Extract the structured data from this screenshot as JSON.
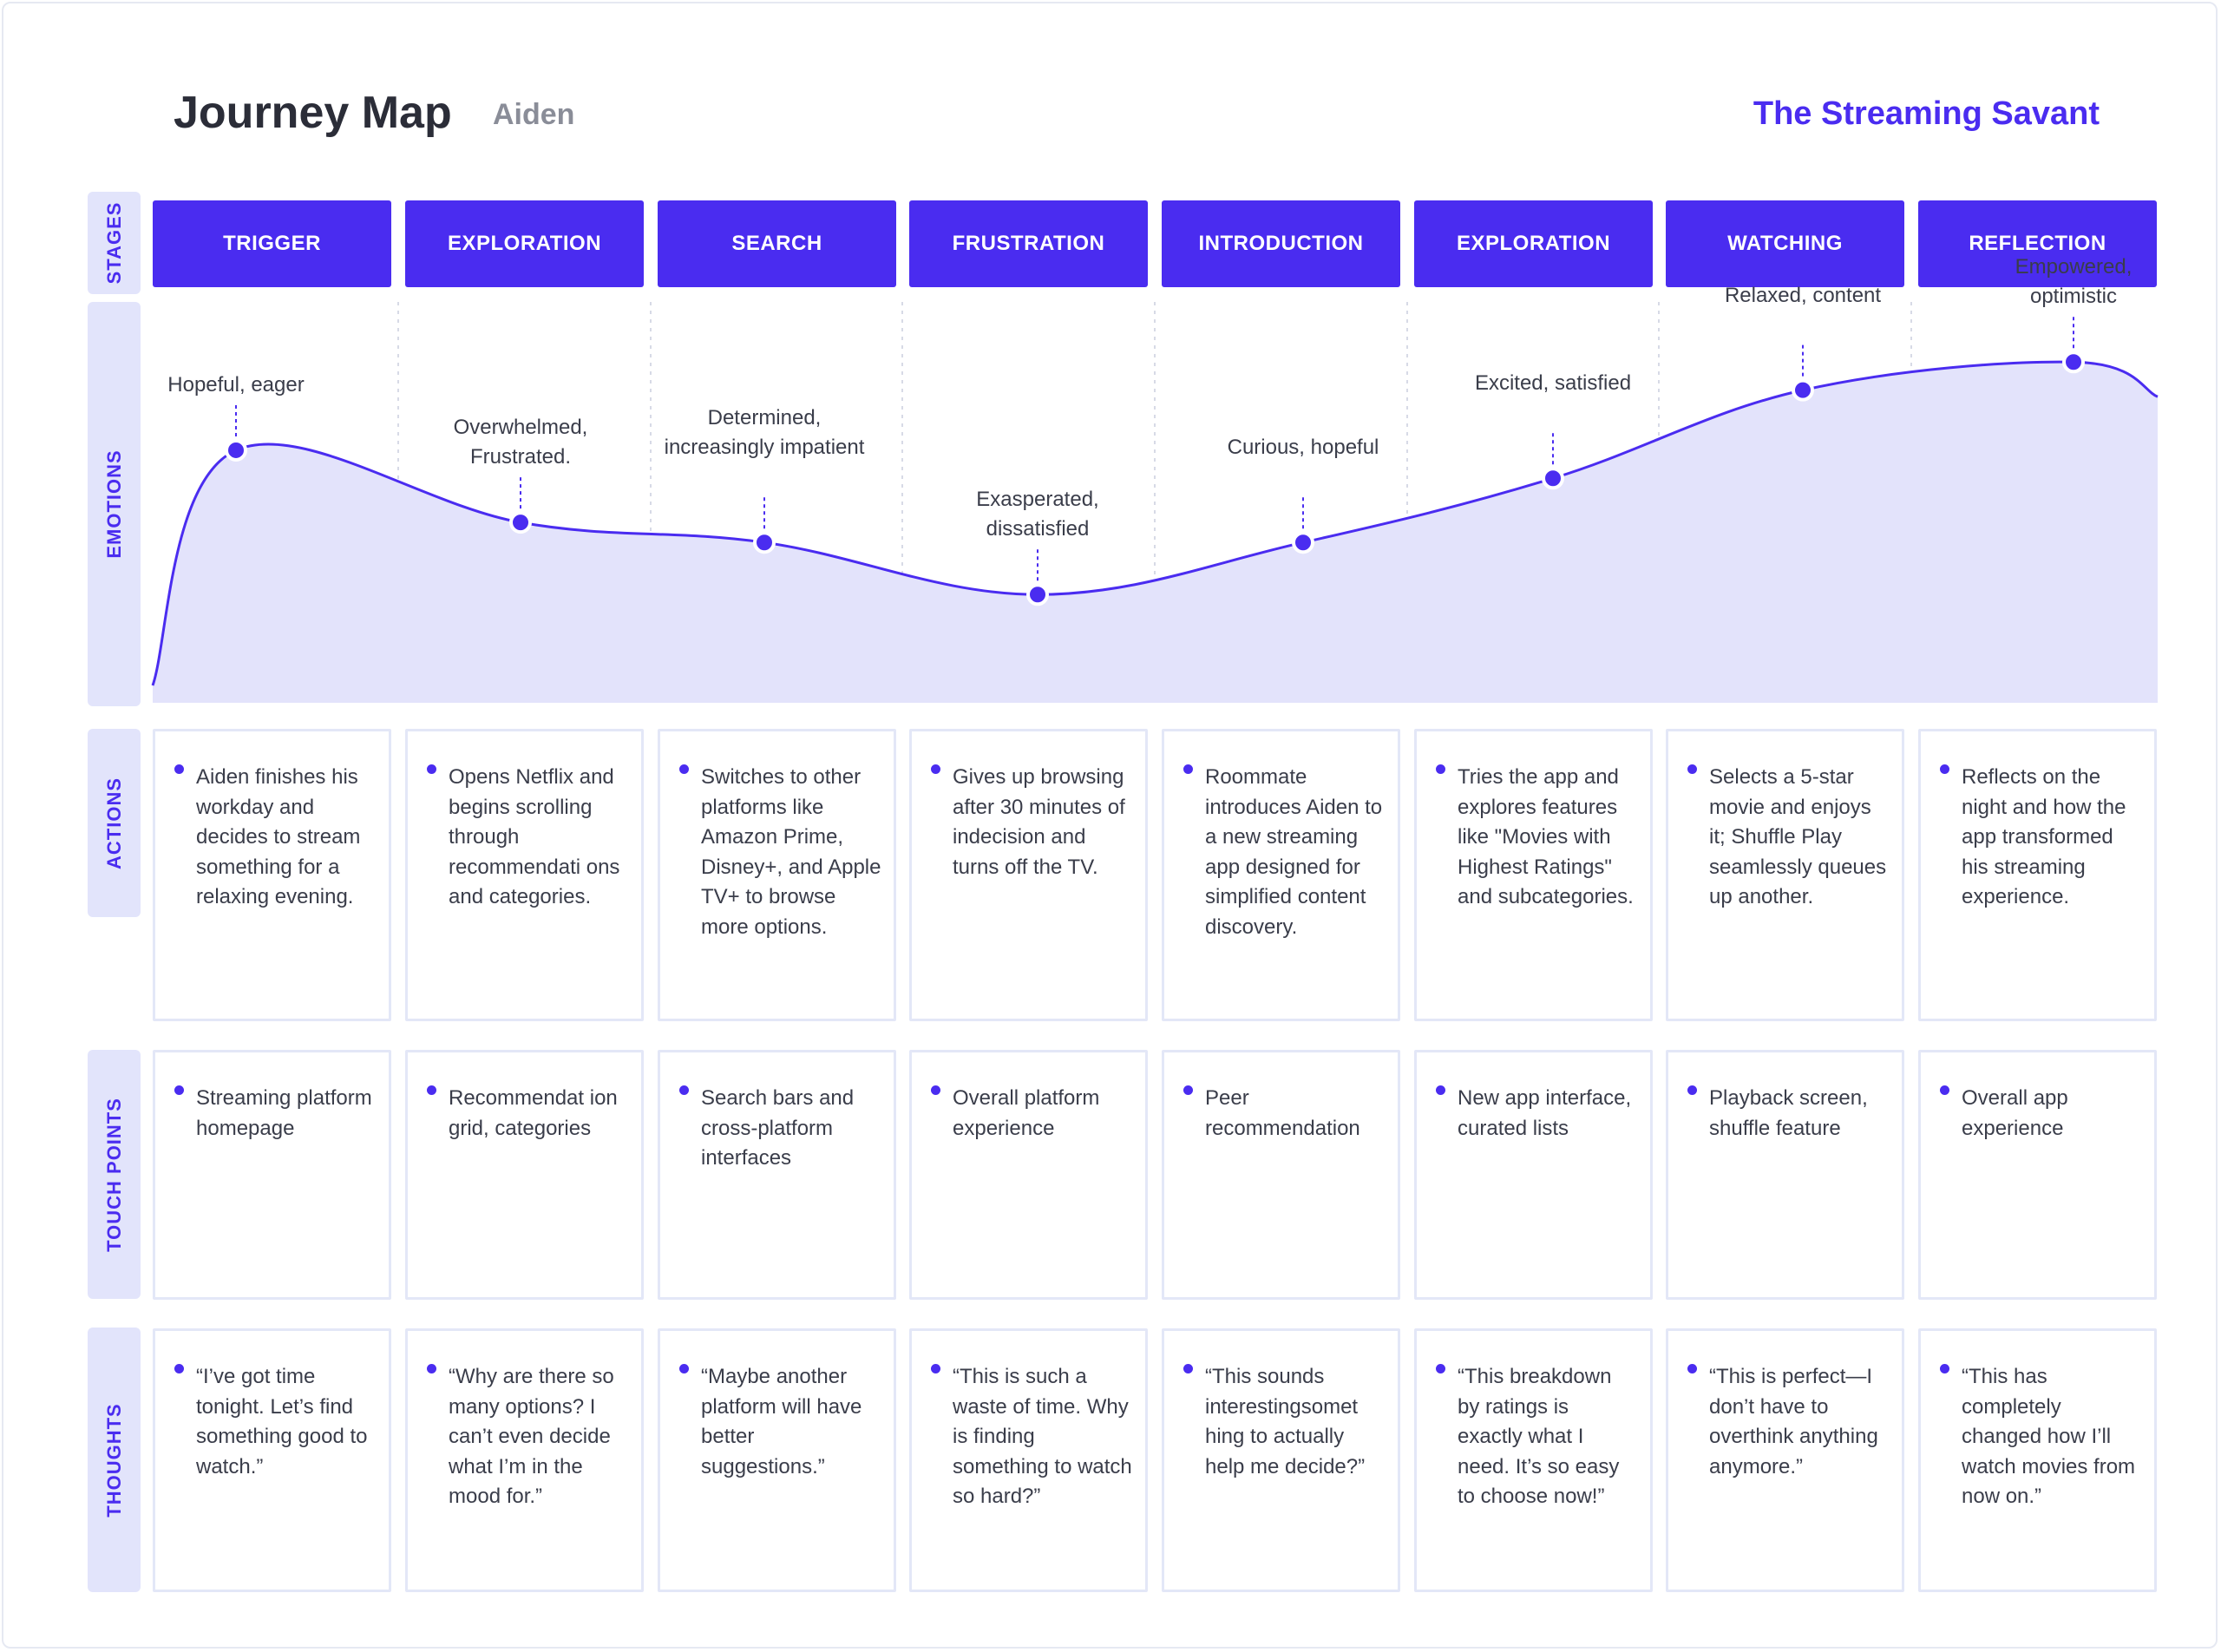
{
  "header": {
    "title": "Journey Map",
    "persona": "Aiden",
    "brand": "The Streaming Savant"
  },
  "colors": {
    "accent": "#4a2cf0",
    "label_bg": "#e2e4fb",
    "curve_fill": "#e3e3fb",
    "card_border": "#e3e7f7"
  },
  "row_labels": {
    "stages": "STAGES",
    "emotions": "EMOTIONS",
    "actions": "ACTIONS",
    "touchpoints": "TOUCH POINTS",
    "thoughts": "THOUGHTS"
  },
  "stages": [
    "TRIGGER",
    "EXPLORATION",
    "SEARCH",
    "FRUSTRATION",
    "INTRODUCTION",
    "EXPLORATION",
    "WATCHING",
    "REFLECTION"
  ],
  "emotions": [
    {
      "label": "Hopeful, eager",
      "level": 0.63
    },
    {
      "label": "Overwhelmed, Frustrated.",
      "level": 0.45
    },
    {
      "label": "Determined, increasingly impatient",
      "level": 0.4
    },
    {
      "label": "Exasperated, dissatisfied",
      "level": 0.27
    },
    {
      "label": "Curious, hopeful",
      "level": 0.4
    },
    {
      "label": "Excited, satisfied",
      "level": 0.56
    },
    {
      "label": "Relaxed, content",
      "level": 0.78
    },
    {
      "label": "Empowered, optimistic",
      "level": 0.85
    }
  ],
  "actions": [
    "Aiden finishes his workday and decides to stream something for a relaxing evening.",
    "Opens Netflix and begins scrolling through recommendati ons and categories.",
    "Switches to other platforms like Amazon Prime, Disney+, and Apple TV+ to browse more options.",
    "Gives up browsing after 30 minutes of indecision and turns off the TV.",
    "Roommate introduces Aiden to a new streaming app designed for simplified content discovery.",
    "Tries the app and explores features like \"Movies with Highest Ratings\" and subcategories.",
    "Selects a 5-star movie and enjoys it; Shuffle Play seamlessly queues up another.",
    "Reflects on the night and how the app transformed his streaming experience."
  ],
  "touchpoints": [
    "Streaming platform homepage",
    "Recommendat ion grid, categories",
    "Search bars and cross-platform interfaces",
    "Overall platform experience",
    "Peer recommendation",
    "New app interface, curated lists",
    "Playback screen, shuffle feature",
    "Overall app experience"
  ],
  "thoughts": [
    "“I’ve got time tonight. Let’s find something good to watch.”",
    "“Why are there so many options? I can’t even decide what I’m in the mood for.”",
    "“Maybe another platform will have better suggestions.”",
    "“This is such a waste of time. Why is finding something to watch so hard?”",
    "“This sounds interestingsomet hing to actually help me decide?”",
    "“This breakdown by ratings is exactly what I need. It’s so easy to choose now!”",
    "“This is perfect—I don’t have to overthink anything anymore.”",
    "“This has completely changed how I’ll watch movies from now on.”"
  ]
}
